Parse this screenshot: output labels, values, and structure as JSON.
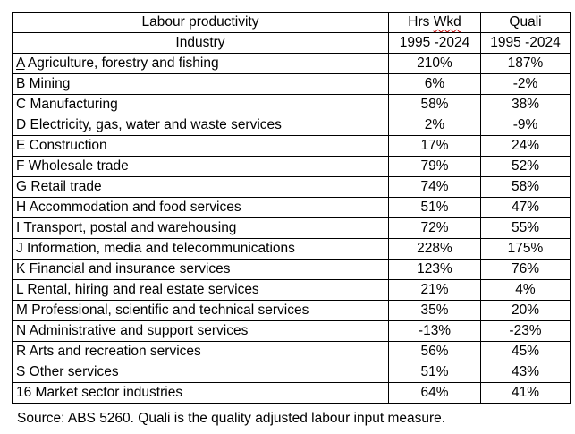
{
  "header": {
    "title_left": "Labour productivity",
    "col_hrs_title_part1": "Hrs",
    "col_hrs_title_part2": "Wkd",
    "col_quali_title": "Quali",
    "subheader_industry": "Industry",
    "subheader_hrs_period": "1995 -2024",
    "subheader_quali_period": "1995 -2024"
  },
  "rows": [
    {
      "letter": "A",
      "name": " Agriculture, forestry and fishing",
      "hrs": "210%",
      "quali": "187%"
    },
    {
      "letter": "B",
      "name": " Mining",
      "hrs": "6%",
      "quali": "-2%"
    },
    {
      "letter": "C",
      "name": " Manufacturing",
      "hrs": "58%",
      "quali": "38%"
    },
    {
      "letter": "D",
      "name": " Electricity, gas, water and waste services",
      "hrs": "2%",
      "quali": "-9%"
    },
    {
      "letter": "E",
      "name": " Construction",
      "hrs": "17%",
      "quali": "24%"
    },
    {
      "letter": "F",
      "name": " Wholesale trade",
      "hrs": "79%",
      "quali": "52%"
    },
    {
      "letter": "G",
      "name": " Retail trade",
      "hrs": "74%",
      "quali": "58%"
    },
    {
      "letter": "H",
      "name": " Accommodation and food services",
      "hrs": "51%",
      "quali": "47%"
    },
    {
      "letter": "I",
      "name": " Transport, postal and warehousing",
      "hrs": "72%",
      "quali": "55%"
    },
    {
      "letter": "J",
      "name": " Information, media and telecommunications",
      "hrs": "228%",
      "quali": "175%"
    },
    {
      "letter": "K",
      "name": " Financial and insurance services",
      "hrs": "123%",
      "quali": "76%"
    },
    {
      "letter": "L",
      "name": " Rental, hiring and real estate services",
      "hrs": "21%",
      "quali": "4%"
    },
    {
      "letter": "M",
      "name": " Professional, scientific and technical services",
      "hrs": "35%",
      "quali": "20%"
    },
    {
      "letter": "N",
      "name": " Administrative and support services",
      "hrs": "-13%",
      "quali": "-23%"
    },
    {
      "letter": "R",
      "name": " Arts and recreation services",
      "hrs": "56%",
      "quali": "45%"
    },
    {
      "letter": "S",
      "name": " Other services",
      "hrs": "51%",
      "quali": "43%"
    },
    {
      "letter": "16",
      "name": " Market sector industries",
      "hrs": "64%",
      "quali": "41%"
    }
  ],
  "source_note": "Source: ABS 5260. Quali is the quality adjusted labour input measure."
}
